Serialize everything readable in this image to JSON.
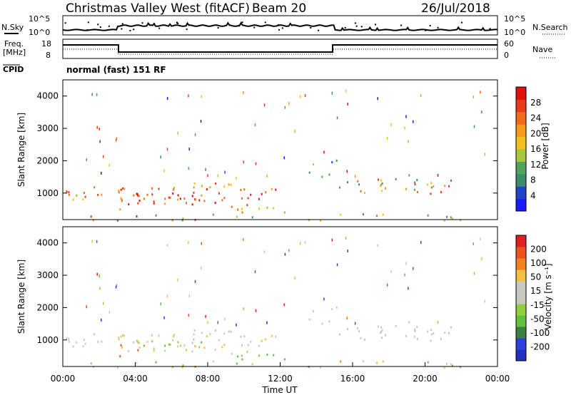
{
  "header": {
    "station": "Christmas Valley West (fitACF)",
    "beam": "Beam 20",
    "date": "26/Jul/2018"
  },
  "noise_panel": {
    "left_label": "N.Sky",
    "right_label": "N.Search",
    "left_ticks": [
      "10^5",
      "10^0"
    ],
    "right_ticks": [
      "10^5",
      "10^0"
    ]
  },
  "freq_panel": {
    "left_label_1": "Freq.",
    "left_label_2": "[MHz]",
    "right_label": "Nave",
    "left_ticks": [
      "18",
      "8"
    ],
    "right_ticks": [
      "60",
      "0"
    ],
    "cpid_label": "CPID",
    "cpid_text": "normal (fast) 151 RF"
  },
  "colors": {
    "power_scale": [
      "#1a1aff",
      "#2244cc",
      "#3a8f6a",
      "#52a35a",
      "#a6c83a",
      "#f0c020",
      "#f39a1a",
      "#f06a1a",
      "#e83a1a",
      "#e01010"
    ],
    "velocity_scale": [
      "#2030c0",
      "#3040e0",
      "#3a8040",
      "#60c040",
      "#90d040",
      "#c8c8c0",
      "#c8c8c0",
      "#f0c040",
      "#f08020",
      "#f05020",
      "#e02020"
    ]
  },
  "chart_data": [
    {
      "type": "heatmap",
      "name": "power",
      "ylabel": "Slant Range [km]",
      "y_ticks": [
        "1000",
        "2000",
        "3000",
        "4000"
      ],
      "ylim": [
        180,
        4500
      ],
      "xlim": [
        0,
        24
      ],
      "colorbar_label": "Power [dB]",
      "colorbar_ticks": [
        "4",
        "8",
        "12",
        "16",
        "20",
        "24",
        "28"
      ],
      "colorbar_range": [
        0,
        32
      ]
    },
    {
      "type": "heatmap",
      "name": "velocity",
      "ylabel": "Slant Range [km]",
      "y_ticks": [
        "1000",
        "2000",
        "3000",
        "4000"
      ],
      "ylim": [
        180,
        4500
      ],
      "xlim": [
        0,
        24
      ],
      "colorbar_label": "Velocity [m s⁻¹]",
      "colorbar_ticks": [
        "-200",
        "-100",
        "-50",
        "-15",
        "15",
        "50",
        "100",
        "200"
      ]
    }
  ],
  "x_axis": {
    "ticks": [
      "00:00",
      "04:00",
      "08:00",
      "12:00",
      "16:00",
      "20:00",
      "00:00"
    ],
    "label": "Time UT"
  }
}
